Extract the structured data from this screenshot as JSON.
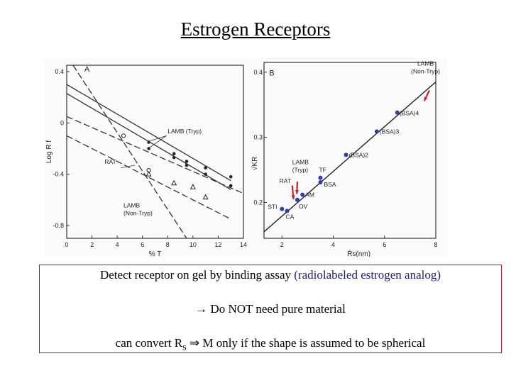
{
  "title": "Estrogen Receptors",
  "notes": {
    "line1_main": "Detect receptor on gel by binding assay",
    "line1_paren": "(radiolabeled estrogen analog)",
    "line2": "→ Do NOT need pure material",
    "line3_a": "can convert R",
    "line3_sub": "s",
    "line3_b": " ⇒ M only if the shape is assumed to be spherical"
  },
  "colors": {
    "title_text": "#000000",
    "box_border": "#b01818",
    "paren_text": "#1c1c8c",
    "point_blue": "#2a3fb0",
    "arrow_red": "#cc2222"
  },
  "chart_data": [
    {
      "type": "line",
      "panel_label": "A",
      "xlabel": "% T",
      "ylabel": "Log R f",
      "xlim": [
        0,
        14
      ],
      "ylim": [
        -0.9,
        0.45
      ],
      "x_ticks": [
        "0",
        "2",
        "4",
        "6",
        "8",
        "10",
        "12",
        "14"
      ],
      "y_ticks": [
        "0.4",
        "0",
        "-0.4",
        "-0.8"
      ],
      "y_tick_values": [
        0.4,
        0,
        -0.4,
        -0.8
      ],
      "series": [
        {
          "name": "LAMB (Tryp)",
          "style": "solid",
          "marker": "dot",
          "line": [
            [
              0,
              0.3
            ],
            [
              13,
              -0.45
            ]
          ],
          "points": [
            [
              6.5,
              -0.15
            ],
            [
              8.5,
              -0.24
            ],
            [
              9.5,
              -0.3
            ],
            [
              11,
              -0.35
            ],
            [
              13,
              -0.42
            ]
          ]
        },
        {
          "name": "LAMB (Tryp)",
          "style": "solid",
          "marker": "dot",
          "line": [
            [
              0,
              0.23
            ],
            [
              13,
              -0.52
            ]
          ],
          "points": [
            [
              6.5,
              -0.2
            ],
            [
              8.5,
              -0.27
            ],
            [
              9.5,
              -0.33
            ],
            [
              11,
              -0.4
            ],
            [
              13,
              -0.49
            ]
          ]
        },
        {
          "name": "RAT",
          "style": "dashed",
          "marker": "open",
          "line": [
            [
              0.5,
              0.45
            ],
            [
              9.5,
              -0.9
            ]
          ],
          "points": [
            [
              4.5,
              -0.1
            ],
            [
              6.5,
              -0.37
            ]
          ]
        },
        {
          "name": "",
          "style": "dashed",
          "marker": "none",
          "line": [
            [
              0,
              0.05
            ],
            [
              14,
              -0.55
            ]
          ],
          "points": []
        },
        {
          "name": "LAMB (Non-Tryp)",
          "style": "dashed",
          "marker": "triangle",
          "line": [
            [
              0,
              -0.1
            ],
            [
              13,
              -0.75
            ]
          ],
          "points": [
            [
              6.5,
              -0.4
            ],
            [
              8.5,
              -0.47
            ],
            [
              10,
              -0.5
            ],
            [
              11,
              -0.58
            ]
          ]
        }
      ],
      "annotations": [
        {
          "text": "LAMB (Tryp)",
          "x": 8,
          "y": -0.08
        },
        {
          "text": "RAT",
          "x": 3,
          "y": -0.32
        },
        {
          "text": "LAMB",
          "x": 4.5,
          "y": -0.66
        },
        {
          "text": "(Non-Tryp)",
          "x": 4.5,
          "y": -0.72
        }
      ]
    },
    {
      "type": "scatter",
      "panel_label": "B",
      "xlabel": "R̄s(nm)",
      "ylabel": "√KR",
      "xlim": [
        1.3,
        8
      ],
      "ylim": [
        0.145,
        0.415
      ],
      "x_ticks": [
        "2",
        "4",
        "6",
        "8"
      ],
      "x_tick_values": [
        2,
        4,
        6,
        8
      ],
      "y_ticks": [
        "0.4",
        "0.3",
        "0.2"
      ],
      "y_tick_values": [
        0.4,
        0.3,
        0.2
      ],
      "fit_line": [
        [
          1.3,
          0.155
        ],
        [
          8,
          0.385
        ]
      ],
      "points": [
        {
          "label": "STI",
          "x": 2.0,
          "y": 0.19
        },
        {
          "label": "CA",
          "x": 2.2,
          "y": 0.187
        },
        {
          "label": "OV",
          "x": 2.6,
          "y": 0.204
        },
        {
          "label": "AM",
          "x": 2.8,
          "y": 0.212
        },
        {
          "label": "BSA",
          "x": 3.5,
          "y": 0.231
        },
        {
          "label": "TF",
          "x": 3.5,
          "y": 0.238
        },
        {
          "label": "(BSA)2",
          "x": 4.5,
          "y": 0.273
        },
        {
          "label": "(BSA)3",
          "x": 5.7,
          "y": 0.309
        },
        {
          "label": "(BSA)4",
          "x": 6.5,
          "y": 0.338
        }
      ],
      "annotations": [
        {
          "text": "LAMB",
          "x": 7.6,
          "y": 0.41
        },
        {
          "text": "(Non-Tryp)",
          "x": 7.6,
          "y": 0.398
        },
        {
          "text": "LAMB",
          "x": 2.4,
          "y": 0.259
        },
        {
          "text": "(Tryp)",
          "x": 2.4,
          "y": 0.247
        },
        {
          "text": "RAT",
          "x": 1.9,
          "y": 0.23
        }
      ]
    }
  ]
}
